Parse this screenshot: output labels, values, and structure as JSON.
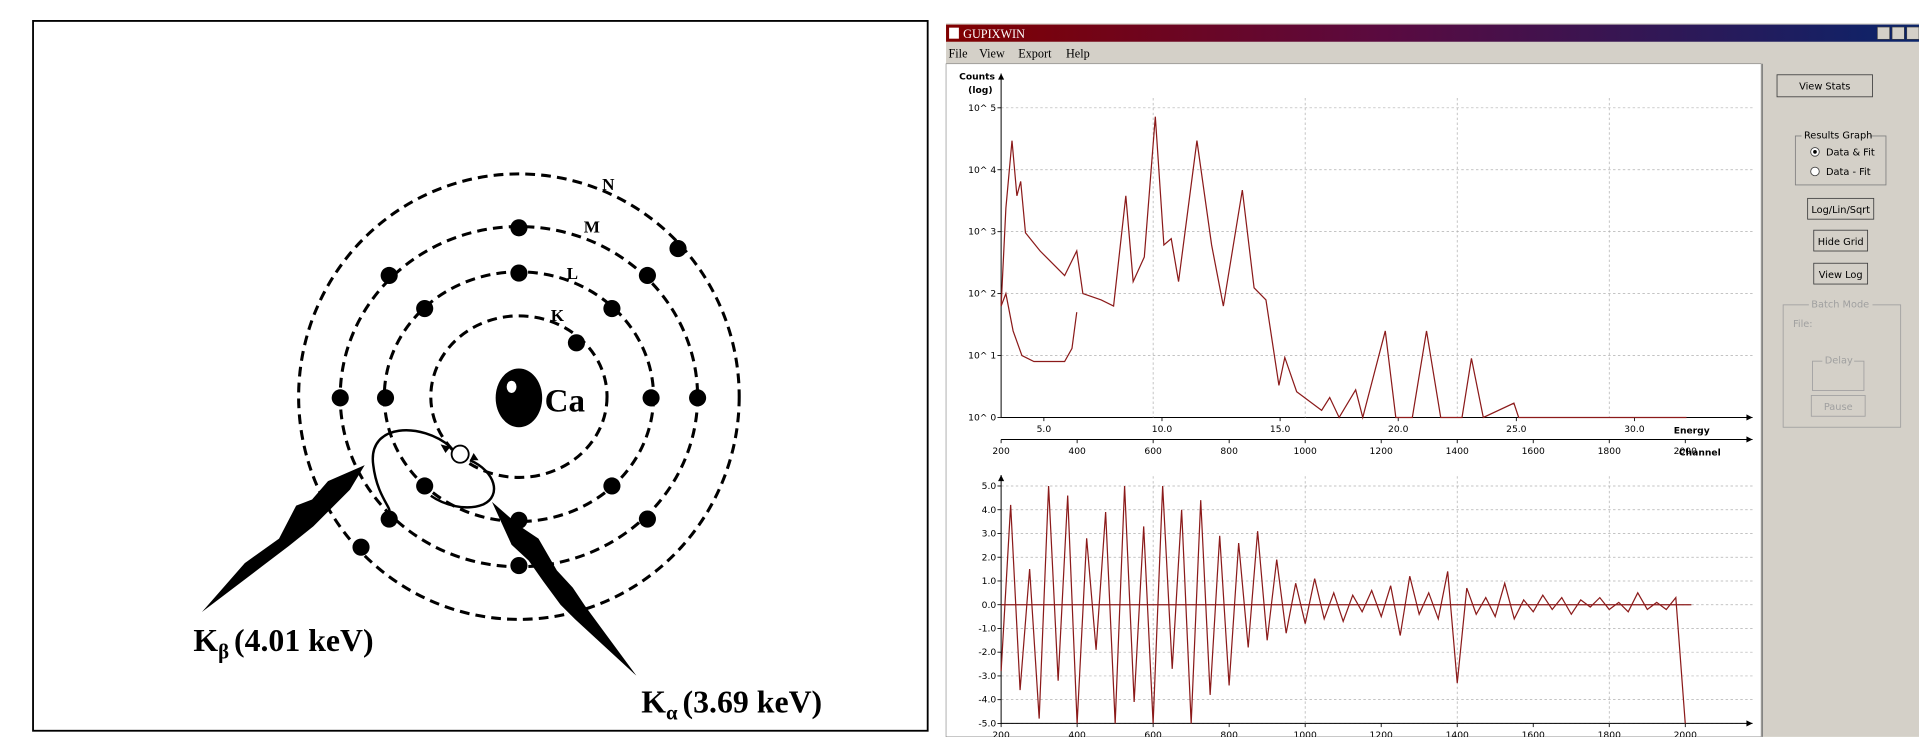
{
  "diagram": {
    "shell_labels": [
      "K",
      "L",
      "M",
      "N"
    ],
    "nucleus": "Ca",
    "k_beta": {
      "symbol": "K",
      "subscript": "β",
      "energy": "(4.01 keV)"
    },
    "k_alpha": {
      "symbol": "K",
      "subscript": "α",
      "energy": "(3.69 keV)"
    }
  },
  "window": {
    "title": "GUPIXWIN",
    "menu": [
      "File",
      "View",
      "Export",
      "Help"
    ],
    "view_stats": "View Stats",
    "results_group": "Results Graph",
    "radio_options": [
      "Data & Fit",
      "Data - Fit"
    ],
    "buttons": [
      "Log/Lin/Sqrt",
      "Hide Grid",
      "View Log"
    ],
    "batch_group": "Batch Mode",
    "file_label": "File:",
    "delay_group": "Delay",
    "pause": "Pause"
  },
  "chart_data": [
    {
      "type": "line",
      "y_label": "Counts",
      "y_label_unit": "(log)",
      "x_label": "Energy",
      "x2_label": "Channel",
      "log": true,
      "grid": true,
      "xlim": [
        3.19,
        35
      ],
      "xticks": [
        {
          "value": 5,
          "label": "5.0"
        },
        {
          "value": 10,
          "label": "10.0"
        },
        {
          "value": 15,
          "label": "15.0"
        },
        {
          "value": 20,
          "label": "20.0"
        },
        {
          "value": 25,
          "label": "25.0"
        },
        {
          "value": 30,
          "label": "30.0"
        }
      ],
      "x2lim": [
        200,
        2177
      ],
      "x2ticks": [
        200,
        400,
        600,
        800,
        1000,
        1200,
        1400,
        1600,
        1800,
        2000
      ],
      "ylim": [
        1,
        100000
      ],
      "yticks": [
        {
          "value": 1,
          "label": "10^ 0"
        },
        {
          "value": 10,
          "label": "10^ 1"
        },
        {
          "value": 100,
          "label": "10^ 2"
        },
        {
          "value": 1000,
          "label": "10^ 3"
        },
        {
          "value": 10000,
          "label": "10^ 4"
        },
        {
          "value": 100000,
          "label": "10^ 5"
        }
      ],
      "series": [
        {
          "color": "#8b1a1a",
          "x": [
            3.19,
            3.39,
            3.65,
            3.86,
            4.02,
            4.22,
            4.84,
            5.88,
            6.39,
            6.65,
            7.43,
            7.95,
            8.47,
            8.78,
            9.25,
            9.72,
            10.08,
            10.39,
            10.7,
            11.48,
            12.1,
            12.6,
            13.4,
            13.9,
            14.4,
            14.95,
            15.2,
            15.7,
            16.76,
            17.1,
            17.5,
            18.2,
            18.5,
            19.45,
            19.9,
            20.6,
            21.2,
            21.8,
            22.7,
            23.1,
            23.6,
            24.9,
            25.1,
            32.2
          ],
          "values": [
            63,
            2400,
            29500,
            3800,
            6500,
            960,
            490,
            195,
            490,
            100,
            79,
            63,
            3800,
            156,
            390,
            72000,
            610,
            770,
            156,
            29500,
            610,
            63,
            4700,
            124,
            79,
            3.3,
            9.3,
            2.6,
            1.3,
            2.1,
            1,
            2.8,
            1,
            25,
            1,
            1,
            25,
            1,
            1,
            9,
            1,
            1.7,
            1,
            1
          ]
        },
        {
          "color": "#8b1a1a",
          "x": [
            3.19,
            3.39,
            3.7,
            4.07,
            4.58,
            5.88,
            6.19,
            6.39
          ],
          "values": [
            63,
            100,
            25,
            10,
            8,
            8,
            13,
            50
          ]
        }
      ]
    },
    {
      "type": "line",
      "grid": true,
      "xlim": [
        200,
        2177
      ],
      "xticks": [
        200,
        400,
        600,
        800,
        1000,
        1200,
        1400,
        1600,
        1800,
        2000
      ],
      "ylim": [
        -5,
        5
      ],
      "yticks": [
        {
          "value": 5,
          "label": "5.0"
        },
        {
          "value": 4,
          "label": "4.0"
        },
        {
          "value": 3,
          "label": "3.0"
        },
        {
          "value": 2,
          "label": "2.0"
        },
        {
          "value": 1,
          "label": "1.0"
        },
        {
          "value": 0,
          "label": "0.0"
        },
        {
          "value": -1,
          "label": "-1.0"
        },
        {
          "value": -2,
          "label": "-2.0"
        },
        {
          "value": -3,
          "label": "-3.0"
        },
        {
          "value": -4,
          "label": "-4.0"
        },
        {
          "value": -5,
          "label": "-5.0"
        }
      ],
      "series": [
        {
          "color": "#8b1a1a",
          "x": [
            200,
            225,
            250,
            275,
            300,
            325,
            350,
            375,
            400,
            425,
            450,
            475,
            500,
            525,
            550,
            575,
            600,
            625,
            650,
            675,
            700,
            725,
            750,
            775,
            800,
            825,
            850,
            875,
            900,
            925,
            950,
            975,
            1000,
            1025,
            1050,
            1075,
            1100,
            1125,
            1150,
            1175,
            1200,
            1225,
            1250,
            1275,
            1300,
            1325,
            1350,
            1375,
            1400,
            1425,
            1450,
            1475,
            1500,
            1525,
            1550,
            1575,
            1600,
            1625,
            1650,
            1675,
            1700,
            1725,
            1750,
            1775,
            1800,
            1825,
            1850,
            1875,
            1900,
            1925,
            1950,
            1975,
            2000
          ],
          "values": [
            -2.8,
            4.2,
            -3.6,
            1.5,
            -4.8,
            5.0,
            -3.2,
            4.6,
            -5.0,
            2.8,
            -1.9,
            3.9,
            -5.0,
            5.0,
            -4.1,
            3.3,
            -5.0,
            5.0,
            -2.7,
            4.0,
            -5.0,
            4.4,
            -3.8,
            2.9,
            -3.4,
            2.6,
            -1.8,
            3.1,
            -1.5,
            1.9,
            -1.2,
            0.9,
            -0.8,
            1.1,
            -0.6,
            0.5,
            -0.7,
            0.4,
            -0.3,
            0.6,
            -0.5,
            0.8,
            -1.3,
            1.2,
            -0.4,
            0.5,
            -0.6,
            1.4,
            -3.3,
            0.7,
            -0.4,
            0.3,
            -0.5,
            0.9,
            -0.6,
            0.2,
            -0.3,
            0.4,
            -0.2,
            0.3,
            -0.4,
            0.2,
            -0.1,
            0.3,
            -0.2,
            0.1,
            -0.3,
            0.5,
            -0.2,
            0.1,
            -0.2,
            0.3,
            -5.0
          ]
        }
      ]
    }
  ]
}
